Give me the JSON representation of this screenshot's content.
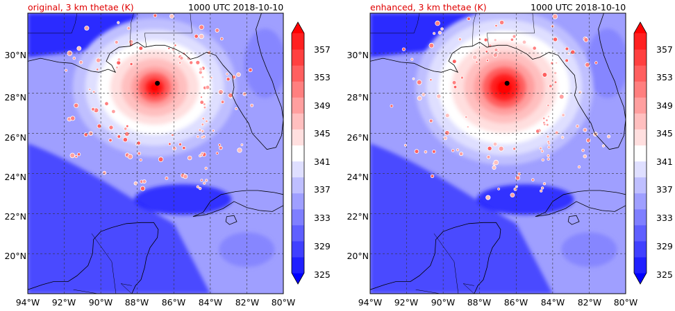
{
  "panels": [
    {
      "id": "original",
      "title_left": "original, 3 km thetae (K)",
      "title_right": "1000 UTC 2018-10-10",
      "storm_center": {
        "lon": -86.9,
        "lat": 28.5
      }
    },
    {
      "id": "enhanced",
      "title_left": "enhanced, 3 km thetae (K)",
      "title_right": "1000 UTC 2018-10-10",
      "storm_center": {
        "lon": -86.5,
        "lat": 28.5
      }
    }
  ],
  "map_extent": {
    "lon_min": -94,
    "lon_max": -80,
    "lat_min": 18,
    "lat_max": 32
  },
  "lat_ticks": [
    {
      "value": 20,
      "label": "20°N"
    },
    {
      "value": 22,
      "label": "22°N"
    },
    {
      "value": 24,
      "label": "24°N"
    },
    {
      "value": 26,
      "label": "26°N"
    },
    {
      "value": 28,
      "label": "28°N"
    },
    {
      "value": 30,
      "label": "30°N"
    }
  ],
  "lon_ticks": [
    {
      "value": -94,
      "label": "94°W"
    },
    {
      "value": -92,
      "label": "92°W"
    },
    {
      "value": -90,
      "label": "90°W"
    },
    {
      "value": -88,
      "label": "88°W"
    },
    {
      "value": -86,
      "label": "86°W"
    },
    {
      "value": -84,
      "label": "84°W"
    },
    {
      "value": -82,
      "label": "82°W"
    },
    {
      "value": -80,
      "label": "80°W"
    }
  ],
  "colorbar": {
    "units": "K",
    "min": 325,
    "max": 357,
    "levels": [
      325,
      327,
      329,
      331,
      333,
      335,
      337,
      339,
      341,
      343,
      345,
      347,
      349,
      351,
      353,
      355,
      357
    ],
    "tick_labels": [
      "325",
      "329",
      "333",
      "337",
      "341",
      "345",
      "349",
      "353",
      "357"
    ],
    "colors": [
      "#0000ff",
      "#2020ff",
      "#4040ff",
      "#5f5fff",
      "#7f7fff",
      "#9f9fff",
      "#bfbfff",
      "#dfdfff",
      "#ffffff",
      "#ffdfdf",
      "#ffbfbf",
      "#ff9f9f",
      "#ff7f7f",
      "#ff5f5f",
      "#ff4040",
      "#ff2020",
      "#ff0000"
    ]
  },
  "colors": {
    "title_accent": "#e00000",
    "storm_marker": "#000000"
  }
}
